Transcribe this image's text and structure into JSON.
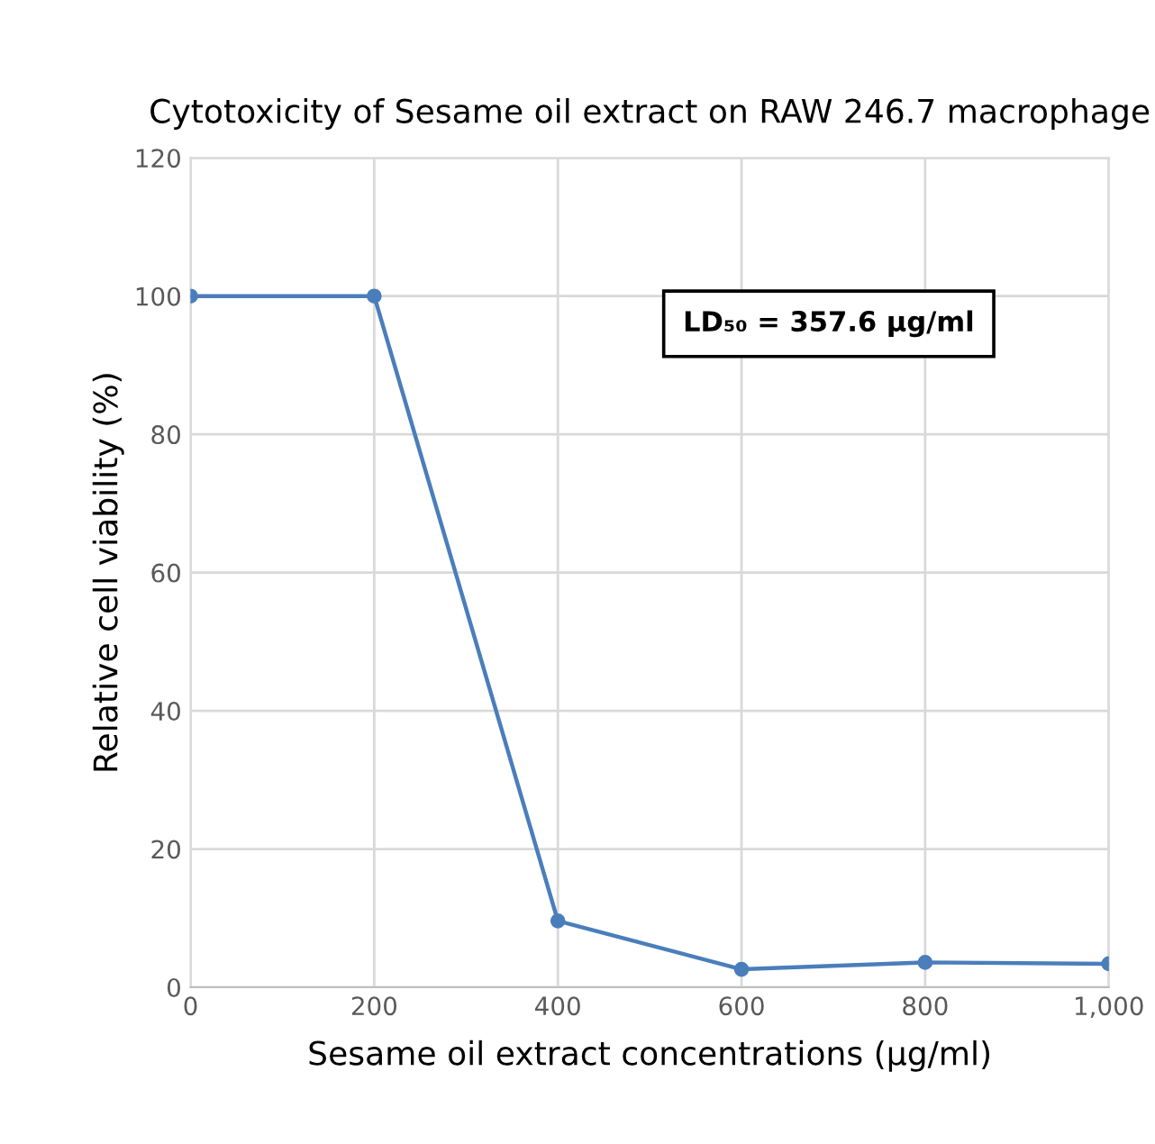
{
  "chart_data": {
    "type": "line",
    "title": "Cytotoxicity of Sesame oil extract on RAW 246.7 macrophage",
    "xlabel": "Sesame oil extract concentrations (µg/ml)",
    "ylabel": "Relative cell viability (%)",
    "x": [
      0,
      200,
      400,
      600,
      800,
      1000
    ],
    "series": [
      {
        "color": "#4a7ebb",
        "values": [
          100,
          100,
          9.6,
          2.6,
          3.6,
          3.4
        ]
      }
    ],
    "xlim": [
      0,
      1000
    ],
    "xticks": [
      0,
      200,
      400,
      600,
      800,
      {
        "value": 1000,
        "label": "1,000"
      }
    ],
    "ylim": [
      0,
      120
    ],
    "yticks": [
      0,
      20,
      40,
      60,
      80,
      100,
      120
    ],
    "grid": true,
    "marker": "circle",
    "line_style": "solid",
    "legend": false,
    "annotations": [
      "LD₅₀ = 357.6 µg/ml"
    ]
  }
}
